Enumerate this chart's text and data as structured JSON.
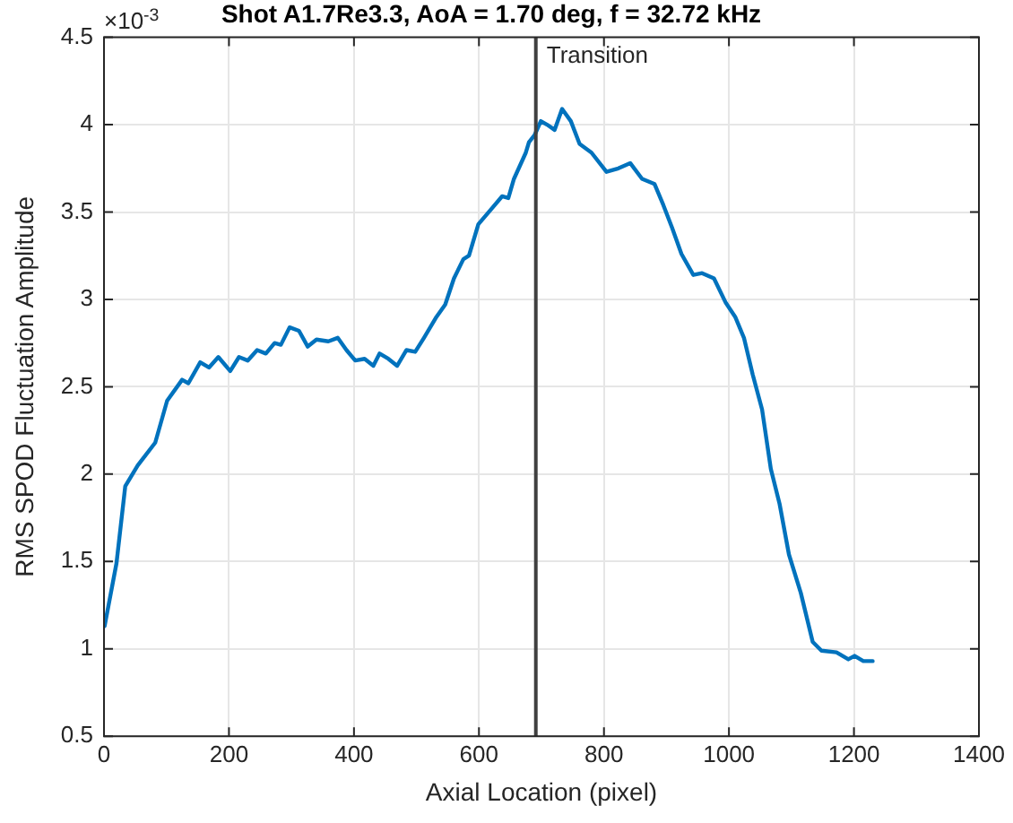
{
  "chart_data": {
    "type": "line",
    "title": "Shot A1.7Re3.3, AoA = 1.70 deg, f = 32.72 kHz",
    "xlabel": "Axial Location (pixel)",
    "ylabel": "RMS SPOD Fluctuation Amplitude",
    "annotations": [
      "×10$^{-3}$"
    ],
    "xlim": [
      0,
      1400
    ],
    "xticks": [
      0,
      200,
      400,
      600,
      800,
      1000,
      1200,
      1400
    ],
    "ylim": [
      0.5,
      4.5
    ],
    "yticks": [
      0.5,
      1,
      1.5,
      2,
      2.5,
      3,
      3.5,
      4,
      4.5
    ],
    "grid": true,
    "legend": false,
    "marker": "none",
    "line_style": "solid",
    "ref_lines": [
      {
        "axis": "x",
        "value": 691,
        "label": "Transition",
        "color": "#404040"
      }
    ],
    "series": [
      {
        "color": "#0072bd",
        "x": [
          1,
          20,
          34,
          54,
          82,
          101,
          125,
          135,
          154,
          168,
          183,
          202,
          216,
          230,
          245,
          259,
          273,
          283,
          297,
          312,
          326,
          340,
          359,
          374,
          388,
          402,
          417,
          431,
          441,
          455,
          469,
          484,
          498,
          512,
          532,
          546,
          560,
          575,
          584,
          599,
          618,
          637,
          647,
          656,
          675,
          680,
          689,
          699,
          709,
          721,
          733,
          747,
          761,
          780,
          804,
          823,
          842,
          861,
          881,
          895,
          909,
          924,
          943,
          957,
          976,
          995,
          1010,
          1024,
          1038,
          1053,
          1067,
          1081,
          1096,
          1115,
          1134,
          1148,
          1172,
          1191,
          1201,
          1215,
          1230
        ],
        "values": [
          1.13,
          1.49,
          1.93,
          2.05,
          2.18,
          2.42,
          2.54,
          2.52,
          2.64,
          2.61,
          2.67,
          2.59,
          2.67,
          2.65,
          2.71,
          2.69,
          2.75,
          2.74,
          2.84,
          2.82,
          2.73,
          2.77,
          2.76,
          2.78,
          2.71,
          2.65,
          2.66,
          2.62,
          2.69,
          2.66,
          2.62,
          2.71,
          2.7,
          2.78,
          2.9,
          2.97,
          3.12,
          3.23,
          3.25,
          3.43,
          3.51,
          3.59,
          3.58,
          3.69,
          3.84,
          3.9,
          3.94,
          4.02,
          4.0,
          3.97,
          4.09,
          4.02,
          3.89,
          3.84,
          3.73,
          3.75,
          3.78,
          3.69,
          3.66,
          3.54,
          3.41,
          3.26,
          3.14,
          3.15,
          3.12,
          2.98,
          2.9,
          2.78,
          2.57,
          2.37,
          2.03,
          1.83,
          1.54,
          1.32,
          1.04,
          0.99,
          0.98,
          0.94,
          0.96,
          0.93,
          0.93
        ]
      }
    ]
  }
}
